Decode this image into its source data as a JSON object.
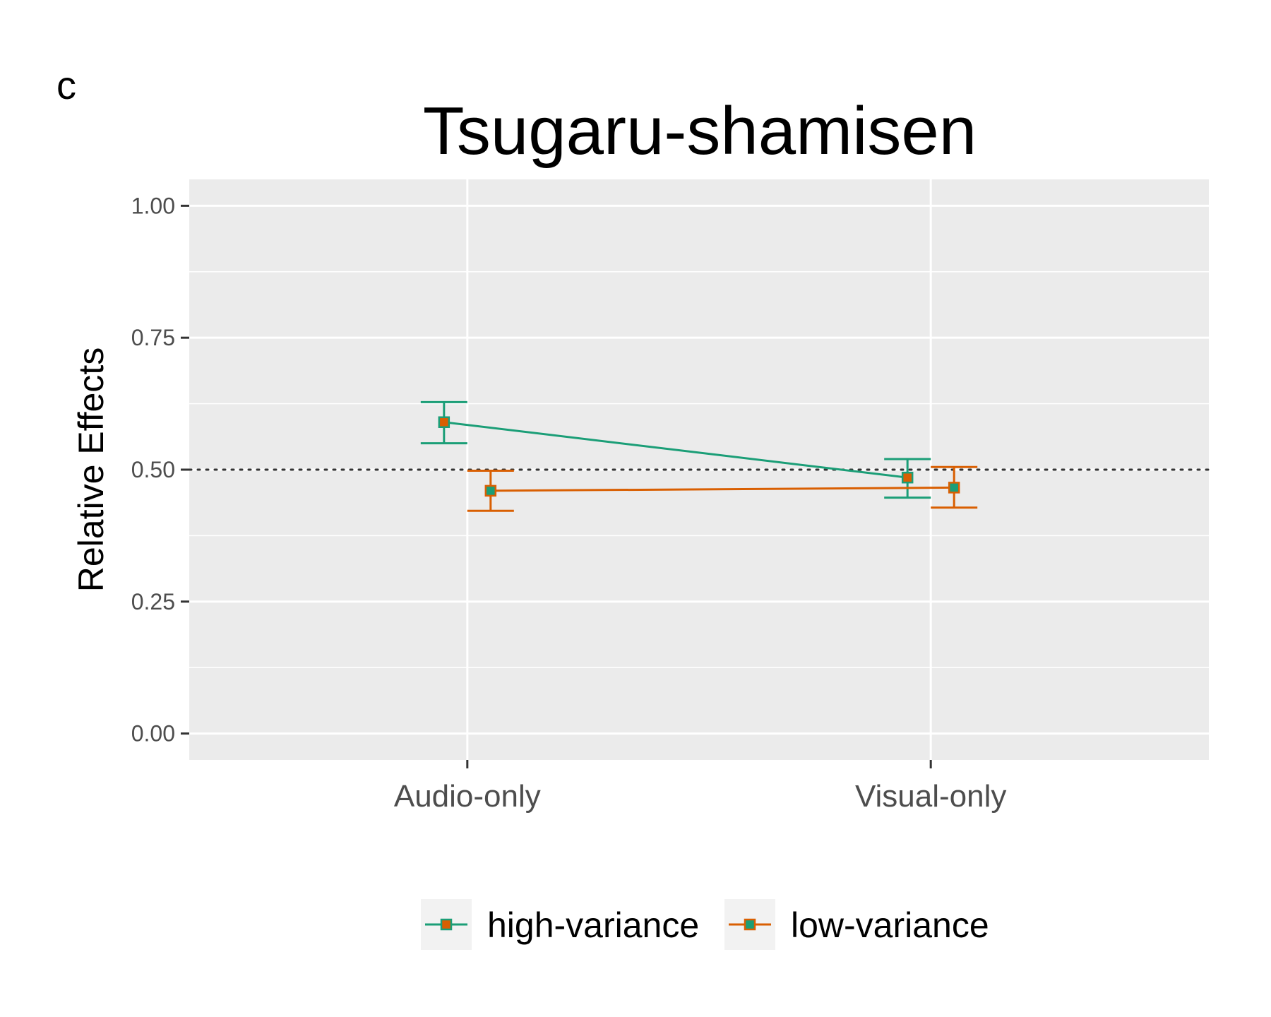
{
  "panel_label": "c",
  "chart_data": {
    "type": "line",
    "title": "Tsugaru-shamisen",
    "xlabel": "",
    "ylabel": "Relative Effects",
    "categories": [
      "Audio-only",
      "Visual-only"
    ],
    "ylim": [
      -0.05,
      1.05
    ],
    "yticks": [
      0.0,
      0.25,
      0.5,
      0.75,
      1.0
    ],
    "ytick_labels": [
      "0.00",
      "0.25",
      "0.50",
      "0.75",
      "1.00"
    ],
    "reference_line": 0.5,
    "grid": true,
    "legend_position": "bottom",
    "series": [
      {
        "name": "high-variance",
        "color": "#1b9e77",
        "marker_fill": "#d95f02",
        "values": [
          0.59,
          0.485
        ],
        "lower": [
          0.55,
          0.447
        ],
        "upper": [
          0.628,
          0.52
        ]
      },
      {
        "name": "low-variance",
        "color": "#d95f02",
        "marker_fill": "#1b9e77",
        "values": [
          0.46,
          0.466
        ],
        "lower": [
          0.422,
          0.428
        ],
        "upper": [
          0.498,
          0.505
        ]
      }
    ]
  }
}
